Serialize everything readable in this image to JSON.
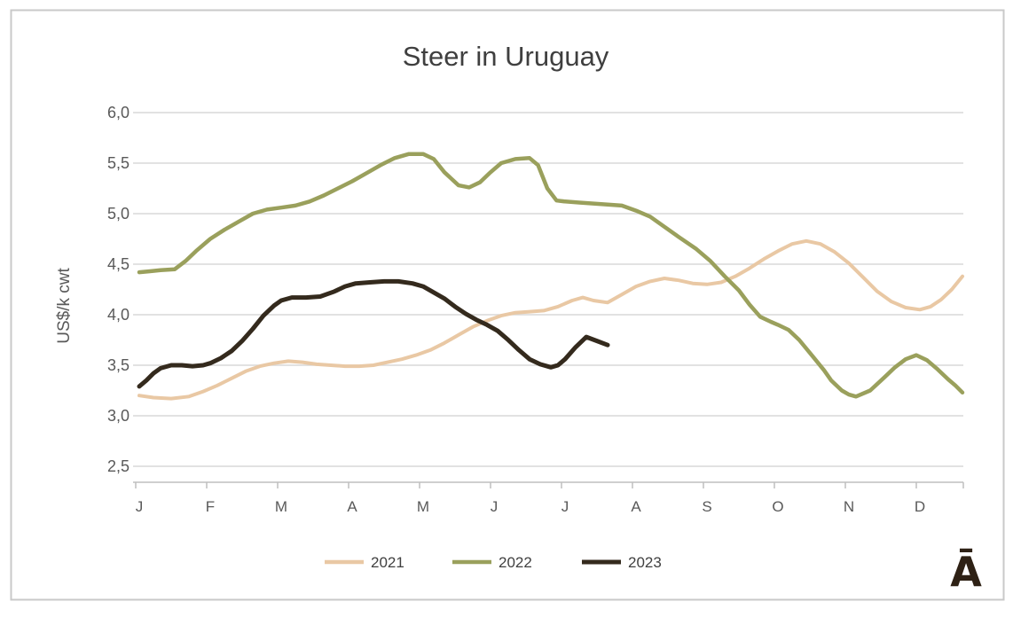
{
  "frame": {
    "border_color": "#c9c9c9",
    "background": "#ffffff"
  },
  "logo": {
    "glyph": "Ā",
    "color": "#2e2115"
  },
  "chart_data": {
    "type": "line",
    "title": "Steer in Uruguay",
    "title_color": "#3f3f3f",
    "ylabel": "US$/k cwt",
    "axis_text_color": "#595959",
    "gridline_color": "#d9d9d9",
    "axisline_color": "#bfbfbf",
    "grid": true,
    "legend_position": "bottom",
    "x_axis": {
      "labels": [
        "J",
        "F",
        "M",
        "A",
        "M",
        "J",
        "J",
        "A",
        "S",
        "O",
        "N",
        "D"
      ]
    },
    "y_axis": {
      "ticks": [
        {
          "label": "6,0",
          "value": 6.0
        },
        {
          "label": "5,5",
          "value": 5.5
        },
        {
          "label": "5,0",
          "value": 5.0
        },
        {
          "label": "4,5",
          "value": 4.5
        },
        {
          "label": "4,0",
          "value": 4.0
        },
        {
          "label": "3,5",
          "value": 3.5
        },
        {
          "label": "3,0",
          "value": 3.0
        },
        {
          "label": "2,5",
          "value": 2.5
        }
      ],
      "range": [
        2.5,
        6.0
      ]
    },
    "series": [
      {
        "name": "2021",
        "color": "#e9c8a4",
        "width": 4,
        "points": [
          [
            0,
            3.2
          ],
          [
            0.2,
            3.18
          ],
          [
            0.45,
            3.17
          ],
          [
            0.7,
            3.19
          ],
          [
            0.9,
            3.24
          ],
          [
            1.1,
            3.3
          ],
          [
            1.3,
            3.37
          ],
          [
            1.5,
            3.44
          ],
          [
            1.7,
            3.49
          ],
          [
            1.9,
            3.52
          ],
          [
            2.1,
            3.54
          ],
          [
            2.3,
            3.53
          ],
          [
            2.5,
            3.51
          ],
          [
            2.7,
            3.5
          ],
          [
            2.9,
            3.49
          ],
          [
            3.1,
            3.49
          ],
          [
            3.3,
            3.5
          ],
          [
            3.5,
            3.53
          ],
          [
            3.7,
            3.56
          ],
          [
            3.9,
            3.6
          ],
          [
            4.1,
            3.65
          ],
          [
            4.3,
            3.72
          ],
          [
            4.5,
            3.8
          ],
          [
            4.7,
            3.88
          ],
          [
            4.9,
            3.94
          ],
          [
            5.1,
            3.99
          ],
          [
            5.3,
            4.02
          ],
          [
            5.5,
            4.03
          ],
          [
            5.7,
            4.04
          ],
          [
            5.9,
            4.08
          ],
          [
            6.1,
            4.14
          ],
          [
            6.25,
            4.17
          ],
          [
            6.4,
            4.14
          ],
          [
            6.6,
            4.12
          ],
          [
            6.8,
            4.2
          ],
          [
            7.0,
            4.28
          ],
          [
            7.2,
            4.33
          ],
          [
            7.4,
            4.36
          ],
          [
            7.6,
            4.34
          ],
          [
            7.8,
            4.31
          ],
          [
            8.0,
            4.3
          ],
          [
            8.2,
            4.32
          ],
          [
            8.4,
            4.38
          ],
          [
            8.6,
            4.46
          ],
          [
            8.8,
            4.55
          ],
          [
            9.0,
            4.63
          ],
          [
            9.2,
            4.7
          ],
          [
            9.4,
            4.73
          ],
          [
            9.6,
            4.7
          ],
          [
            9.8,
            4.62
          ],
          [
            10.0,
            4.51
          ],
          [
            10.2,
            4.37
          ],
          [
            10.4,
            4.23
          ],
          [
            10.6,
            4.13
          ],
          [
            10.8,
            4.07
          ],
          [
            11.0,
            4.05
          ],
          [
            11.15,
            4.08
          ],
          [
            11.3,
            4.15
          ],
          [
            11.45,
            4.25
          ],
          [
            11.6,
            4.38
          ]
        ]
      },
      {
        "name": "2022",
        "color": "#9aa05c",
        "width": 4.5,
        "points": [
          [
            0,
            4.42
          ],
          [
            0.15,
            4.43
          ],
          [
            0.3,
            4.44
          ],
          [
            0.5,
            4.45
          ],
          [
            0.65,
            4.53
          ],
          [
            0.8,
            4.63
          ],
          [
            1.0,
            4.75
          ],
          [
            1.2,
            4.84
          ],
          [
            1.4,
            4.92
          ],
          [
            1.6,
            5.0
          ],
          [
            1.8,
            5.04
          ],
          [
            2.0,
            5.06
          ],
          [
            2.2,
            5.08
          ],
          [
            2.4,
            5.12
          ],
          [
            2.6,
            5.18
          ],
          [
            2.8,
            5.25
          ],
          [
            3.0,
            5.32
          ],
          [
            3.2,
            5.4
          ],
          [
            3.4,
            5.48
          ],
          [
            3.6,
            5.55
          ],
          [
            3.8,
            5.59
          ],
          [
            4.0,
            5.59
          ],
          [
            4.15,
            5.54
          ],
          [
            4.3,
            5.41
          ],
          [
            4.5,
            5.28
          ],
          [
            4.65,
            5.26
          ],
          [
            4.8,
            5.31
          ],
          [
            4.95,
            5.41
          ],
          [
            5.1,
            5.5
          ],
          [
            5.3,
            5.54
          ],
          [
            5.5,
            5.55
          ],
          [
            5.62,
            5.48
          ],
          [
            5.75,
            5.25
          ],
          [
            5.88,
            5.13
          ],
          [
            6.0,
            5.12
          ],
          [
            6.2,
            5.11
          ],
          [
            6.4,
            5.1
          ],
          [
            6.6,
            5.09
          ],
          [
            6.8,
            5.08
          ],
          [
            7.0,
            5.03
          ],
          [
            7.2,
            4.97
          ],
          [
            7.4,
            4.87
          ],
          [
            7.6,
            4.77
          ],
          [
            7.85,
            4.65
          ],
          [
            8.05,
            4.53
          ],
          [
            8.25,
            4.38
          ],
          [
            8.45,
            4.24
          ],
          [
            8.6,
            4.1
          ],
          [
            8.75,
            3.98
          ],
          [
            8.9,
            3.93
          ],
          [
            9.0,
            3.9
          ],
          [
            9.15,
            3.85
          ],
          [
            9.3,
            3.75
          ],
          [
            9.5,
            3.58
          ],
          [
            9.65,
            3.45
          ],
          [
            9.75,
            3.35
          ],
          [
            9.9,
            3.25
          ],
          [
            10.0,
            3.21
          ],
          [
            10.1,
            3.19
          ],
          [
            10.3,
            3.25
          ],
          [
            10.5,
            3.38
          ],
          [
            10.65,
            3.48
          ],
          [
            10.8,
            3.56
          ],
          [
            10.95,
            3.6
          ],
          [
            11.1,
            3.55
          ],
          [
            11.25,
            3.46
          ],
          [
            11.4,
            3.36
          ],
          [
            11.5,
            3.3
          ],
          [
            11.6,
            3.23
          ]
        ]
      },
      {
        "name": "2023",
        "color": "#342a1d",
        "width": 5,
        "points": [
          [
            0,
            3.29
          ],
          [
            0.1,
            3.35
          ],
          [
            0.2,
            3.42
          ],
          [
            0.3,
            3.47
          ],
          [
            0.45,
            3.5
          ],
          [
            0.6,
            3.5
          ],
          [
            0.75,
            3.49
          ],
          [
            0.9,
            3.5
          ],
          [
            1.0,
            3.52
          ],
          [
            1.15,
            3.57
          ],
          [
            1.3,
            3.64
          ],
          [
            1.45,
            3.74
          ],
          [
            1.6,
            3.86
          ],
          [
            1.75,
            3.99
          ],
          [
            1.9,
            4.09
          ],
          [
            2.0,
            4.14
          ],
          [
            2.15,
            4.17
          ],
          [
            2.35,
            4.17
          ],
          [
            2.55,
            4.18
          ],
          [
            2.75,
            4.23
          ],
          [
            2.9,
            4.28
          ],
          [
            3.05,
            4.31
          ],
          [
            3.25,
            4.32
          ],
          [
            3.45,
            4.33
          ],
          [
            3.65,
            4.33
          ],
          [
            3.85,
            4.31
          ],
          [
            4.0,
            4.28
          ],
          [
            4.15,
            4.22
          ],
          [
            4.3,
            4.16
          ],
          [
            4.45,
            4.08
          ],
          [
            4.6,
            4.01
          ],
          [
            4.75,
            3.95
          ],
          [
            4.9,
            3.9
          ],
          [
            5.05,
            3.84
          ],
          [
            5.2,
            3.75
          ],
          [
            5.35,
            3.65
          ],
          [
            5.5,
            3.56
          ],
          [
            5.65,
            3.51
          ],
          [
            5.8,
            3.48
          ],
          [
            5.9,
            3.5
          ],
          [
            6.0,
            3.56
          ],
          [
            6.15,
            3.68
          ],
          [
            6.3,
            3.78
          ],
          [
            6.45,
            3.74
          ],
          [
            6.6,
            3.7
          ]
        ]
      }
    ]
  }
}
